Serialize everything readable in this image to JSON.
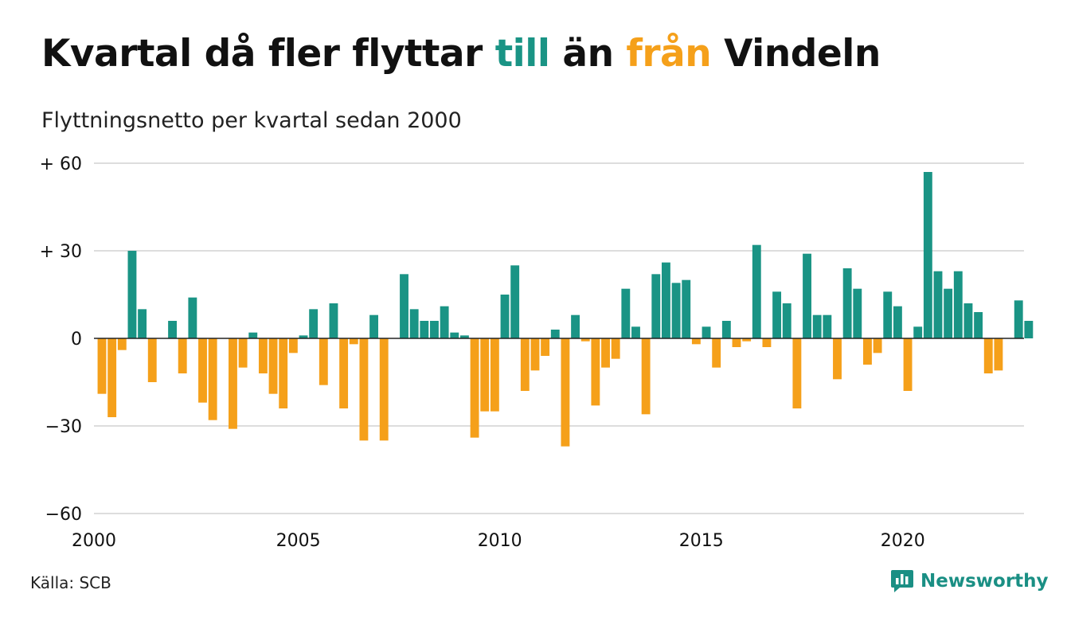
{
  "header": {
    "title_parts": [
      "Kvartal då fler flyttar ",
      "till",
      " än ",
      "från",
      " Vindeln"
    ],
    "subtitle": "Flyttningsnetto per kvartal sedan 2000"
  },
  "footer": {
    "source": "Källa: SCB",
    "brand": "Newsworthy"
  },
  "colors": {
    "positive": "#1a9485",
    "negative": "#f5a01a",
    "grid": "#dddddd",
    "text": "#111111",
    "brand": "#1a8f84"
  },
  "icons": {
    "brand": "bar-chart-speech-icon"
  },
  "chart_data": {
    "type": "bar",
    "title": "Kvartal då fler flyttar till än från Vindeln",
    "subtitle": "Flyttningsnetto per kvartal sedan 2000",
    "ylim": [
      -60,
      60
    ],
    "yticks": [
      {
        "value": 60,
        "label": "+ 60"
      },
      {
        "value": 30,
        "label": "+ 30"
      },
      {
        "value": 0,
        "label": "0"
      },
      {
        "value": -30,
        "label": "−30"
      },
      {
        "value": -60,
        "label": "−60"
      }
    ],
    "xticks": [
      "2000",
      "2005",
      "2010",
      "2015",
      "2020"
    ],
    "xlim": [
      "2000-Q1",
      "2023-Q1"
    ],
    "grid": true,
    "legend": "none",
    "categories": [
      "2000-Q1",
      "2000-Q2",
      "2000-Q3",
      "2000-Q4",
      "2001-Q1",
      "2001-Q2",
      "2001-Q3",
      "2001-Q4",
      "2002-Q1",
      "2002-Q2",
      "2002-Q3",
      "2002-Q4",
      "2003-Q1",
      "2003-Q2",
      "2003-Q3",
      "2003-Q4",
      "2004-Q1",
      "2004-Q2",
      "2004-Q3",
      "2004-Q4",
      "2005-Q1",
      "2005-Q2",
      "2005-Q3",
      "2005-Q4",
      "2006-Q1",
      "2006-Q2",
      "2006-Q3",
      "2006-Q4",
      "2007-Q1",
      "2007-Q2",
      "2007-Q3",
      "2007-Q4",
      "2008-Q1",
      "2008-Q2",
      "2008-Q3",
      "2008-Q4",
      "2009-Q1",
      "2009-Q2",
      "2009-Q3",
      "2009-Q4",
      "2010-Q1",
      "2010-Q2",
      "2010-Q3",
      "2010-Q4",
      "2011-Q1",
      "2011-Q2",
      "2011-Q3",
      "2011-Q4",
      "2012-Q1",
      "2012-Q2",
      "2012-Q3",
      "2012-Q4",
      "2013-Q1",
      "2013-Q2",
      "2013-Q3",
      "2013-Q4",
      "2014-Q1",
      "2014-Q2",
      "2014-Q3",
      "2014-Q4",
      "2015-Q1",
      "2015-Q2",
      "2015-Q3",
      "2015-Q4",
      "2016-Q1",
      "2016-Q2",
      "2016-Q3",
      "2016-Q4",
      "2017-Q1",
      "2017-Q2",
      "2017-Q3",
      "2017-Q4",
      "2018-Q1",
      "2018-Q2",
      "2018-Q3",
      "2018-Q4",
      "2019-Q1",
      "2019-Q2",
      "2019-Q3",
      "2019-Q4",
      "2020-Q1",
      "2020-Q2",
      "2020-Q3",
      "2020-Q4",
      "2021-Q1",
      "2021-Q2",
      "2021-Q3",
      "2021-Q4",
      "2022-Q1",
      "2022-Q2",
      "2022-Q3",
      "2022-Q4",
      "2023-Q1"
    ],
    "values": [
      -19,
      -27,
      -4,
      30,
      10,
      -15,
      0,
      6,
      -12,
      14,
      -22,
      -28,
      0,
      -31,
      -10,
      2,
      -12,
      -19,
      -24,
      -5,
      1,
      10,
      -16,
      12,
      -24,
      -2,
      -35,
      8,
      -35,
      0,
      22,
      10,
      6,
      6,
      11,
      2,
      1,
      -34,
      -25,
      -25,
      15,
      25,
      -18,
      -11,
      -6,
      3,
      -37,
      8,
      -1,
      -23,
      -10,
      -7,
      17,
      4,
      -26,
      22,
      26,
      19,
      20,
      -2,
      4,
      -10,
      6,
      -3,
      -1,
      32,
      -3,
      16,
      12,
      -24,
      29,
      8,
      8,
      -14,
      24,
      17,
      -9,
      -5,
      16,
      11,
      -18,
      4,
      57,
      23,
      17,
      23,
      12,
      9,
      -12,
      -11,
      0,
      13,
      6
    ]
  }
}
